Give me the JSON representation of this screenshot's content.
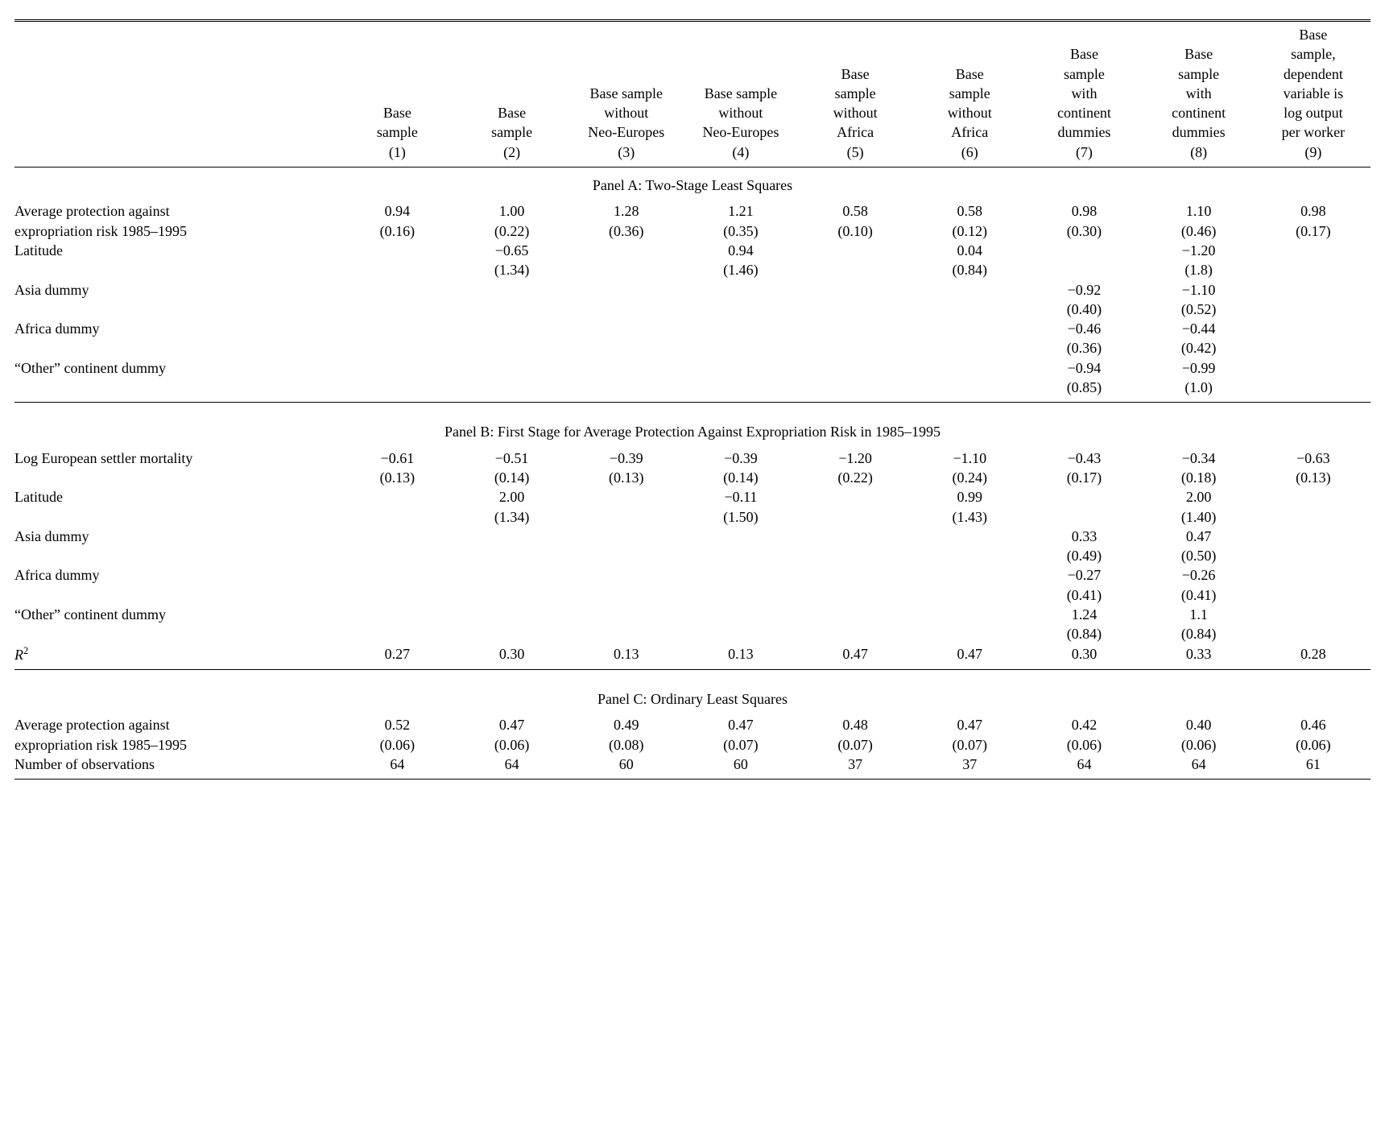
{
  "columns": [
    {
      "label_lines": [
        "Base",
        "sample",
        "(1)"
      ]
    },
    {
      "label_lines": [
        "Base",
        "sample",
        "(2)"
      ]
    },
    {
      "label_lines": [
        "Base sample",
        "without",
        "Neo-Europes",
        "(3)"
      ]
    },
    {
      "label_lines": [
        "Base sample",
        "without",
        "Neo-Europes",
        "(4)"
      ]
    },
    {
      "label_lines": [
        "Base",
        "sample",
        "without",
        "Africa",
        "(5)"
      ]
    },
    {
      "label_lines": [
        "Base",
        "sample",
        "without",
        "Africa",
        "(6)"
      ]
    },
    {
      "label_lines": [
        "Base",
        "sample",
        "with",
        "continent",
        "dummies",
        "(7)"
      ]
    },
    {
      "label_lines": [
        "Base",
        "sample",
        "with",
        "continent",
        "dummies",
        "(8)"
      ]
    },
    {
      "label_lines": [
        "Base",
        "sample,",
        "dependent",
        "variable is",
        "log output",
        "per worker",
        "(9)"
      ]
    }
  ],
  "panelA": {
    "title": "Panel A: Two-Stage Least Squares",
    "rows": [
      {
        "label": "Average protection against",
        "label2": "expropriation risk 1985–1995",
        "vals": [
          "0.94",
          "1.00",
          "1.28",
          "1.21",
          "0.58",
          "0.58",
          "0.98",
          "1.10",
          "0.98"
        ],
        "ses": [
          "(0.16)",
          "(0.22)",
          "(0.36)",
          "(0.35)",
          "(0.10)",
          "(0.12)",
          "(0.30)",
          "(0.46)",
          "(0.17)"
        ]
      },
      {
        "label": "Latitude",
        "vals": [
          "",
          "−0.65",
          "",
          "0.94",
          "",
          "0.04",
          "",
          "−1.20",
          ""
        ],
        "ses": [
          "",
          "(1.34)",
          "",
          "(1.46)",
          "",
          "(0.84)",
          "",
          "(1.8)",
          ""
        ]
      },
      {
        "label": "Asia dummy",
        "vals": [
          "",
          "",
          "",
          "",
          "",
          "",
          "−0.92",
          "−1.10",
          ""
        ],
        "ses": [
          "",
          "",
          "",
          "",
          "",
          "",
          "(0.40)",
          "(0.52)",
          ""
        ]
      },
      {
        "label": "Africa dummy",
        "vals": [
          "",
          "",
          "",
          "",
          "",
          "",
          "−0.46",
          "−0.44",
          ""
        ],
        "ses": [
          "",
          "",
          "",
          "",
          "",
          "",
          "(0.36)",
          "(0.42)",
          ""
        ]
      },
      {
        "label": "“Other” continent dummy",
        "vals": [
          "",
          "",
          "",
          "",
          "",
          "",
          "−0.94",
          "−0.99",
          ""
        ],
        "ses": [
          "",
          "",
          "",
          "",
          "",
          "",
          "(0.85)",
          "(1.0)",
          ""
        ]
      }
    ]
  },
  "panelB": {
    "title": "Panel B: First Stage for Average Protection Against Expropriation Risk in 1985–1995",
    "rows": [
      {
        "label": "Log European settler mortality",
        "vals": [
          "−0.61",
          "−0.51",
          "−0.39",
          "−0.39",
          "−1.20",
          "−1.10",
          "−0.43",
          "−0.34",
          "−0.63"
        ],
        "ses": [
          "(0.13)",
          "(0.14)",
          "(0.13)",
          "(0.14)",
          "(0.22)",
          "(0.24)",
          "(0.17)",
          "(0.18)",
          "(0.13)"
        ]
      },
      {
        "label": "Latitude",
        "vals": [
          "",
          "2.00",
          "",
          "−0.11",
          "",
          "0.99",
          "",
          "2.00",
          ""
        ],
        "ses": [
          "",
          "(1.34)",
          "",
          "(1.50)",
          "",
          "(1.43)",
          "",
          "(1.40)",
          ""
        ]
      },
      {
        "label": "Asia dummy",
        "vals": [
          "",
          "",
          "",
          "",
          "",
          "",
          "0.33",
          "0.47",
          ""
        ],
        "ses": [
          "",
          "",
          "",
          "",
          "",
          "",
          "(0.49)",
          "(0.50)",
          ""
        ]
      },
      {
        "label": "Africa dummy",
        "vals": [
          "",
          "",
          "",
          "",
          "",
          "",
          "−0.27",
          "−0.26",
          ""
        ],
        "ses": [
          "",
          "",
          "",
          "",
          "",
          "",
          "(0.41)",
          "(0.41)",
          ""
        ]
      },
      {
        "label": "“Other” continent dummy",
        "vals": [
          "",
          "",
          "",
          "",
          "",
          "",
          "1.24",
          "1.1",
          ""
        ],
        "ses": [
          "",
          "",
          "",
          "",
          "",
          "",
          "(0.84)",
          "(0.84)",
          ""
        ]
      }
    ],
    "r2_label": "R",
    "r2_sup": "2",
    "r2": [
      "0.27",
      "0.30",
      "0.13",
      "0.13",
      "0.47",
      "0.47",
      "0.30",
      "0.33",
      "0.28"
    ]
  },
  "panelC": {
    "title": "Panel C: Ordinary Least Squares",
    "rows": [
      {
        "label": "Average protection against",
        "label2": "expropriation risk 1985–1995",
        "vals": [
          "0.52",
          "0.47",
          "0.49",
          "0.47",
          "0.48",
          "0.47",
          "0.42",
          "0.40",
          "0.46"
        ],
        "ses": [
          "(0.06)",
          "(0.06)",
          "(0.08)",
          "(0.07)",
          "(0.07)",
          "(0.07)",
          "(0.06)",
          "(0.06)",
          "(0.06)"
        ]
      }
    ],
    "nobs_label": "Number of observations",
    "nobs": [
      "64",
      "64",
      "60",
      "60",
      "37",
      "37",
      "64",
      "64",
      "61"
    ]
  },
  "style": {
    "font_family": "Times New Roman",
    "font_size_pt": 13,
    "text_color": "#000000",
    "background_color": "#ffffff",
    "rule_color": "#000000",
    "double_rule_top": true
  }
}
